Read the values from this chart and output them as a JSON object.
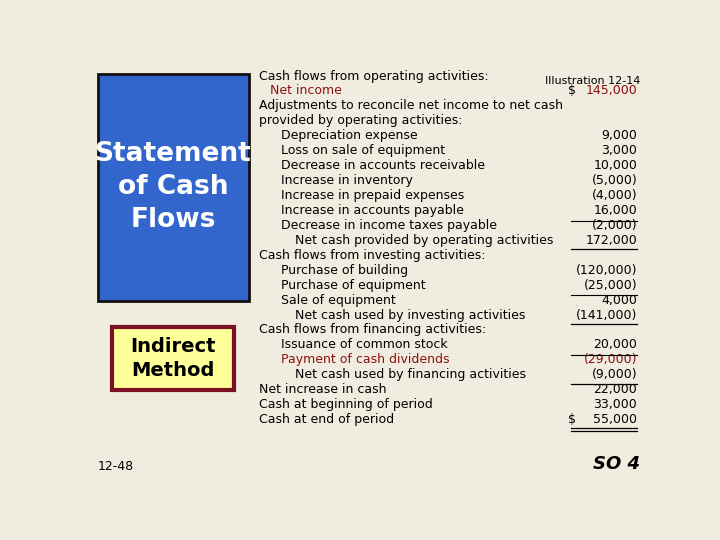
{
  "bg_color": "#f0ece0",
  "title_box_color": "#3366cc",
  "title_text": "Statement\nof Cash\nFlows",
  "title_text_color": "#ffffff",
  "indirect_box_bg": "#ffff99",
  "indirect_box_border": "#7a1020",
  "indirect_text": "Indirect\nMethod",
  "indirect_text_color": "#000000",
  "illustration_text": "Illustration 12-14",
  "bottom_left_text": "12-48",
  "bottom_right_text": "SO 4",
  "red_color": "#8b1010",
  "lines": [
    {
      "text": "Cash flows from operating activities:",
      "indent": 0,
      "value": "",
      "color": "#000000",
      "underline": false
    },
    {
      "text": "Net income",
      "indent": 1,
      "value": "145,000",
      "color": "#8b1010",
      "dollar": true,
      "underline": false
    },
    {
      "text": "Adjustments to reconcile net income to net cash",
      "indent": 0,
      "value": "",
      "color": "#000000",
      "underline": false
    },
    {
      "text": "provided by operating activities:",
      "indent": 0,
      "value": "",
      "color": "#000000",
      "underline": false
    },
    {
      "text": "Depreciation expense",
      "indent": 2,
      "value": "9,000",
      "color": "#000000",
      "underline": false
    },
    {
      "text": "Loss on sale of equipment",
      "indent": 2,
      "value": "3,000",
      "color": "#000000",
      "underline": false
    },
    {
      "text": "Decrease in accounts receivable",
      "indent": 2,
      "value": "10,000",
      "color": "#000000",
      "underline": false
    },
    {
      "text": "Increase in inventory",
      "indent": 2,
      "value": "(5,000)",
      "color": "#000000",
      "underline": false
    },
    {
      "text": "Increase in prepaid expenses",
      "indent": 2,
      "value": "(4,000)",
      "color": "#000000",
      "underline": false
    },
    {
      "text": "Increase in accounts payable",
      "indent": 2,
      "value": "16,000",
      "color": "#000000",
      "underline": false
    },
    {
      "text": "Decrease in income taxes payable",
      "indent": 2,
      "value": "(2,000)",
      "color": "#000000",
      "underline_before": true,
      "underline": false
    },
    {
      "text": "Net cash provided by operating activities",
      "indent": 3,
      "value": "172,000",
      "color": "#000000",
      "underline": true
    },
    {
      "text": "Cash flows from investing activities:",
      "indent": 0,
      "value": "",
      "color": "#000000",
      "underline": false
    },
    {
      "text": "Purchase of building",
      "indent": 2,
      "value": "(120,000)",
      "color": "#000000",
      "underline": false
    },
    {
      "text": "Purchase of equipment",
      "indent": 2,
      "value": "(25,000)",
      "color": "#000000",
      "underline": false
    },
    {
      "text": "Sale of equipment",
      "indent": 2,
      "value": "4,000",
      "color": "#000000",
      "underline_before": true,
      "underline": false
    },
    {
      "text": "Net cash used by investing activities",
      "indent": 3,
      "value": "(141,000)",
      "color": "#000000",
      "underline": true
    },
    {
      "text": "Cash flows from financing activities:",
      "indent": 0,
      "value": "",
      "color": "#000000",
      "underline": false
    },
    {
      "text": "Issuance of common stock",
      "indent": 2,
      "value": "20,000",
      "color": "#000000",
      "underline": false
    },
    {
      "text": "Payment of cash dividends",
      "indent": 2,
      "value": "(29,000)",
      "color": "#8b1010",
      "underline_before": true,
      "underline": false
    },
    {
      "text": "Net cash used by financing activities",
      "indent": 3,
      "value": "(9,000)",
      "color": "#000000",
      "underline": true
    },
    {
      "text": "Net increase in cash",
      "indent": 0,
      "value": "22,000",
      "color": "#000000",
      "underline": false
    },
    {
      "text": "Cash at beginning of period",
      "indent": 0,
      "value": "33,000",
      "color": "#000000",
      "underline": false
    },
    {
      "text": "Cash at end of period",
      "indent": 0,
      "value": "55,000",
      "color": "#000000",
      "dollar_end": true,
      "underline": true,
      "double_underline": true
    }
  ]
}
